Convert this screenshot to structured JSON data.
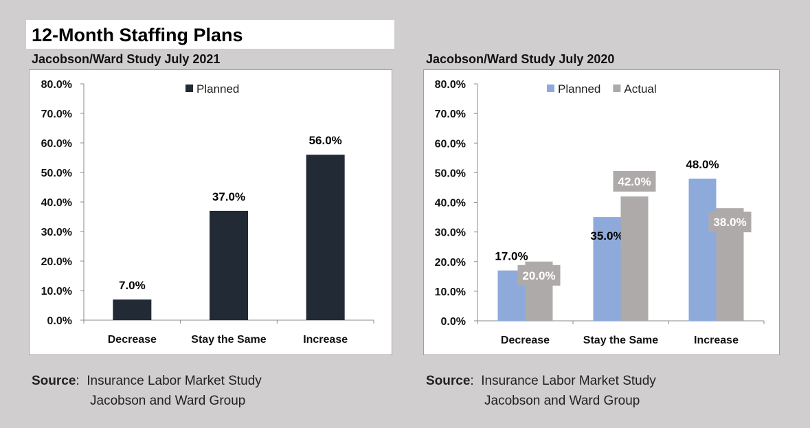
{
  "title": "12-Month Staffing Plans",
  "source_left": {
    "label": "Source",
    "sep": ":  ",
    "line1": "Insurance Labor Market Study",
    "line2": "Jacobson and Ward Group"
  },
  "source_right": {
    "label": "Source",
    "sep": ":  ",
    "line1": "Insurance Labor Market Study",
    "line2": "Jacobson and Ward Group"
  },
  "chart_data": [
    {
      "type": "bar",
      "title": "Jacobson/Ward Study July 2021",
      "categories": [
        "Decrease",
        "Stay the Same",
        "Increase"
      ],
      "series": [
        {
          "name": "Planned",
          "values": [
            7.0,
            37.0,
            56.0
          ],
          "color": "#222a35",
          "labels": [
            "7.0%",
            "37.0%",
            "56.0%"
          ]
        }
      ],
      "yticks": [
        "0.0%",
        "10.0%",
        "20.0%",
        "30.0%",
        "40.0%",
        "50.0%",
        "60.0%",
        "70.0%",
        "80.0%"
      ],
      "ylim": [
        0,
        80
      ],
      "xlabel": "",
      "ylabel": "",
      "legend": "top-center"
    },
    {
      "type": "bar",
      "title": "Jacobson/Ward Study July 2020",
      "categories": [
        "Decrease",
        "Stay the Same",
        "Increase"
      ],
      "series": [
        {
          "name": "Planned",
          "values": [
            17.0,
            35.0,
            48.0
          ],
          "color": "#8eaadb",
          "labels": [
            "17.0%",
            "35.0%",
            "48.0%"
          ]
        },
        {
          "name": "Actual",
          "values": [
            20.0,
            42.0,
            38.0
          ],
          "color": "#aeaaaa",
          "labels": [
            "20.0%",
            "42.0%",
            "38.0%"
          ]
        }
      ],
      "yticks": [
        "0.0%",
        "10.0%",
        "20.0%",
        "30.0%",
        "40.0%",
        "50.0%",
        "60.0%",
        "70.0%",
        "80.0%"
      ],
      "ylim": [
        0,
        80
      ],
      "xlabel": "",
      "ylabel": "",
      "legend": "top-center"
    }
  ]
}
